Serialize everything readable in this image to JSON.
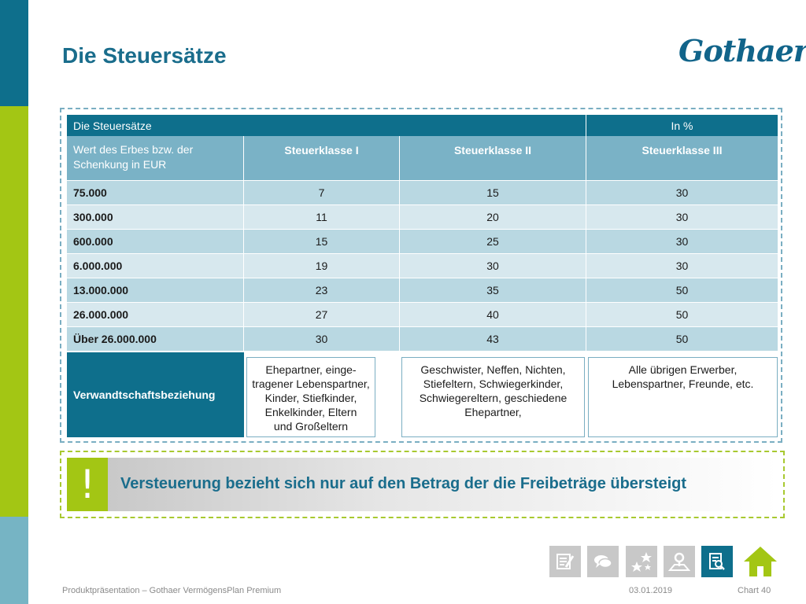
{
  "page": {
    "title": "Die Steuersätze",
    "logo": "Gothaer"
  },
  "table": {
    "header": {
      "left": "Die Steuersätze",
      "right": "In %"
    },
    "subheader": [
      "Wert des Erbes bzw. der Schenkung in EUR",
      "Steuerklasse I",
      "Steuerklasse II",
      "Steuerklasse III"
    ],
    "rows": [
      [
        "75.000",
        "7",
        "15",
        "30"
      ],
      [
        "300.000",
        "11",
        "20",
        "30"
      ],
      [
        "600.000",
        "15",
        "25",
        "30"
      ],
      [
        "6.000.000",
        "19",
        "30",
        "30"
      ],
      [
        "13.000.000",
        "23",
        "35",
        "50"
      ],
      [
        "26.000.000",
        "27",
        "40",
        "50"
      ],
      [
        "Über 26.000.000",
        "30",
        "43",
        "50"
      ]
    ],
    "relationship": {
      "label": "Verwandtschaftsbeziehung",
      "class1": "Ehepartner, einge-\ntragener Lebenspartner,\nKinder, Stiefkinder,\nEnkelkinder, Eltern\nund Großeltern",
      "class2": "Geschwister, Neffen, Nichten,\nStiefeltern, Schwiegerkinder,\nSchwiegereltern, geschiedene\nEhepartner,",
      "class3": "Alle übrigen Erwerber,\nLebenspartner, Freunde, etc."
    }
  },
  "note": {
    "mark": "!",
    "text": "Versteuerung bezieht sich nur auf den Betrag der die Freibeträge übersteigt"
  },
  "nav": {
    "icons": [
      "notes-icon",
      "chat-icon",
      "stars-icon",
      "map-icon",
      "search-document-icon",
      "home-icon"
    ]
  },
  "footer": {
    "left": "Produktpräsentation – Gothaer VermögensPlan Premium",
    "date": "03.01.2019",
    "chart": "Chart 40"
  },
  "colors": {
    "primary": "#0e6f8c",
    "accent": "#a3c614",
    "light_blue": "#7ab2c6"
  }
}
